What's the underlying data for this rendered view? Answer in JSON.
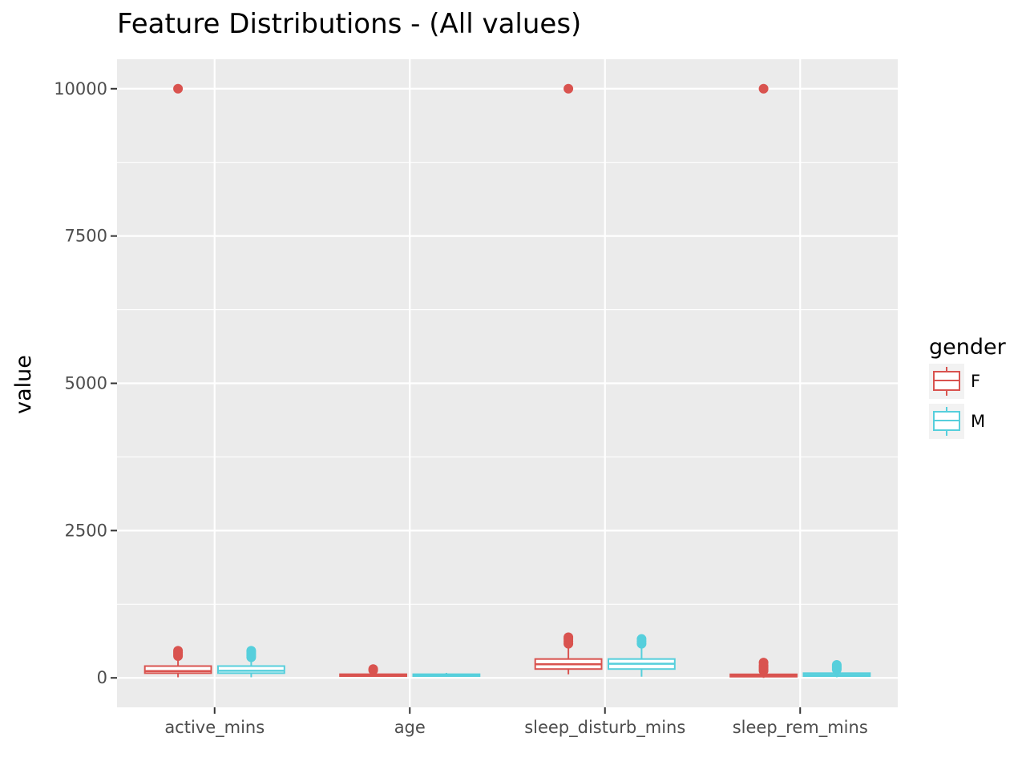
{
  "chart_data": {
    "type": "boxplot",
    "title": "Feature Distributions - (All values)",
    "xlabel": "",
    "ylabel": "value",
    "categories": [
      "active_mins",
      "age",
      "sleep_disturb_mins",
      "sleep_rem_mins"
    ],
    "ylim": [
      -500,
      10500
    ],
    "yticks": [
      0,
      2500,
      5000,
      7500,
      10000
    ],
    "grid": true,
    "legend": {
      "title": "gender",
      "position": "right",
      "entries": [
        "F",
        "M"
      ]
    },
    "series": [
      {
        "name": "F",
        "color": "#d9534f",
        "boxes": [
          {
            "category": "active_mins",
            "whisker_low": 10,
            "q1": 80,
            "median": 115,
            "q3": 200,
            "whisker_high": 330,
            "outliers": [
              370,
              400,
              430,
              460,
              10000
            ]
          },
          {
            "category": "age",
            "whisker_low": 18,
            "q1": 30,
            "median": 45,
            "q3": 62,
            "whisker_high": 85,
            "outliers": [
              130,
              150
            ]
          },
          {
            "category": "sleep_disturb_mins",
            "whisker_low": 60,
            "q1": 150,
            "median": 230,
            "q3": 320,
            "whisker_high": 500,
            "outliers": [
              580,
              620,
              660,
              690,
              10000
            ]
          },
          {
            "category": "sleep_rem_mins",
            "whisker_low": 0,
            "q1": 20,
            "median": 40,
            "q3": 60,
            "whisker_high": 90,
            "outliers": [
              120,
              150,
              180,
              210,
              260,
              10000
            ]
          }
        ]
      },
      {
        "name": "M",
        "color": "#56cfdc",
        "boxes": [
          {
            "category": "active_mins",
            "whisker_low": 10,
            "q1": 80,
            "median": 120,
            "q3": 200,
            "whisker_high": 320,
            "outliers": [
              350,
              380,
              410,
              440,
              460
            ]
          },
          {
            "category": "age",
            "whisker_low": 18,
            "q1": 30,
            "median": 45,
            "q3": 62,
            "whisker_high": 85,
            "outliers": []
          },
          {
            "category": "sleep_disturb_mins",
            "whisker_low": 20,
            "q1": 150,
            "median": 240,
            "q3": 320,
            "whisker_high": 500,
            "outliers": [
              580,
              620,
              660
            ]
          },
          {
            "category": "sleep_rem_mins",
            "whisker_low": 10,
            "q1": 30,
            "median": 50,
            "q3": 80,
            "whisker_high": 110,
            "outliers": [
              140,
              160,
              180,
              200,
              220
            ]
          }
        ]
      }
    ]
  }
}
